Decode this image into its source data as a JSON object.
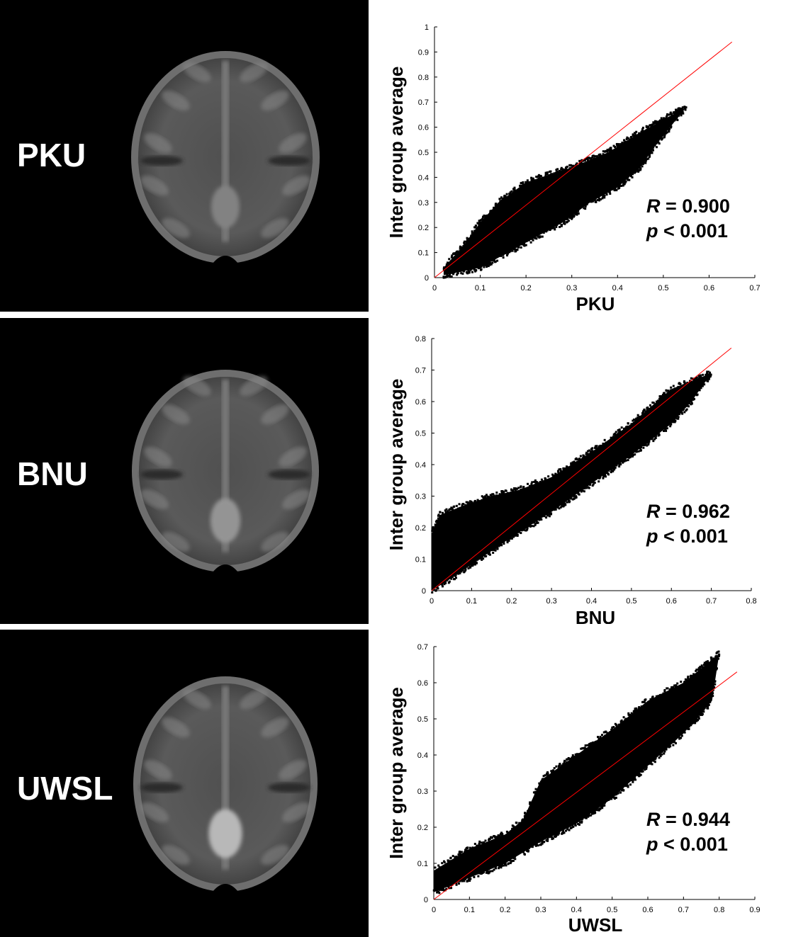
{
  "figure": {
    "rows": [
      {
        "site_label": "PKU"
      },
      {
        "site_label": "BNU"
      },
      {
        "site_label": "UWSL"
      }
    ]
  },
  "colors": {
    "points": "#000000",
    "fit_line": "#ff0000",
    "brain_background": "#000000",
    "label_text": "#ffffff"
  },
  "chart_data": [
    {
      "type": "scatter",
      "xlabel": "PKU",
      "ylabel": "Inter group average",
      "xlim": [
        0,
        0.7
      ],
      "ylim": [
        0,
        1
      ],
      "xticks": [
        "0",
        "0.1",
        "0.2",
        "0.3",
        "0.4",
        "0.5",
        "0.6",
        "0.7"
      ],
      "yticks": [
        "0",
        "0.1",
        "0.2",
        "0.3",
        "0.4",
        "0.5",
        "0.6",
        "0.7",
        "0.8",
        "0.9",
        "1"
      ],
      "fit_line": {
        "x": [
          0,
          0.65
        ],
        "y": [
          0,
          0.94
        ]
      },
      "cloud_upper": [
        [
          0.02,
          0.04
        ],
        [
          0.06,
          0.12
        ],
        [
          0.1,
          0.22
        ],
        [
          0.14,
          0.3
        ],
        [
          0.2,
          0.38
        ],
        [
          0.3,
          0.44
        ],
        [
          0.38,
          0.5
        ],
        [
          0.45,
          0.58
        ],
        [
          0.5,
          0.63
        ],
        [
          0.55,
          0.68
        ]
      ],
      "cloud_lower": [
        [
          0.02,
          0.01
        ],
        [
          0.1,
          0.04
        ],
        [
          0.16,
          0.1
        ],
        [
          0.22,
          0.16
        ],
        [
          0.28,
          0.22
        ],
        [
          0.34,
          0.3
        ],
        [
          0.4,
          0.36
        ],
        [
          0.45,
          0.44
        ],
        [
          0.48,
          0.52
        ],
        [
          0.55,
          0.68
        ]
      ],
      "annotation": {
        "r_symbol": "R",
        "r_value": "= 0.900",
        "p_symbol": "p",
        "p_value": "< 0.001"
      }
    },
    {
      "type": "scatter",
      "xlabel": "BNU",
      "ylabel": "Inter group average",
      "xlim": [
        0,
        0.8
      ],
      "ylim": [
        0,
        0.8
      ],
      "xticks": [
        "0",
        "0.1",
        "0.2",
        "0.3",
        "0.4",
        "0.5",
        "0.6",
        "0.7",
        "0.8"
      ],
      "yticks": [
        "0",
        "0.1",
        "0.2",
        "0.3",
        "0.4",
        "0.5",
        "0.6",
        "0.7",
        "0.8"
      ],
      "fit_line": {
        "x": [
          0,
          0.75
        ],
        "y": [
          0,
          0.77
        ]
      },
      "cloud_upper": [
        [
          0.0,
          0.18
        ],
        [
          0.02,
          0.24
        ],
        [
          0.08,
          0.27
        ],
        [
          0.15,
          0.3
        ],
        [
          0.22,
          0.32
        ],
        [
          0.3,
          0.36
        ],
        [
          0.4,
          0.44
        ],
        [
          0.5,
          0.53
        ],
        [
          0.6,
          0.64
        ],
        [
          0.7,
          0.69
        ]
      ],
      "cloud_lower": [
        [
          0.0,
          0.0
        ],
        [
          0.05,
          0.04
        ],
        [
          0.12,
          0.1
        ],
        [
          0.2,
          0.17
        ],
        [
          0.3,
          0.25
        ],
        [
          0.4,
          0.34
        ],
        [
          0.5,
          0.43
        ],
        [
          0.6,
          0.53
        ],
        [
          0.65,
          0.6
        ],
        [
          0.7,
          0.69
        ]
      ],
      "annotation": {
        "r_symbol": "R",
        "r_value": "= 0.962",
        "p_symbol": "p",
        "p_value": "< 0.001"
      }
    },
    {
      "type": "scatter",
      "xlabel": "UWSL",
      "ylabel": "Inter group average",
      "xlim": [
        0,
        0.9
      ],
      "ylim": [
        0,
        0.7
      ],
      "xticks": [
        "0",
        "0.1",
        "0.2",
        "0.3",
        "0.4",
        "0.5",
        "0.6",
        "0.7",
        "0.8",
        "0.9"
      ],
      "yticks": [
        "0",
        "0.1",
        "0.2",
        "0.3",
        "0.4",
        "0.5",
        "0.6",
        "0.7"
      ],
      "fit_line": {
        "x": [
          0,
          0.85
        ],
        "y": [
          0,
          0.63
        ]
      },
      "cloud_upper": [
        [
          0.0,
          0.08
        ],
        [
          0.1,
          0.14
        ],
        [
          0.2,
          0.18
        ],
        [
          0.25,
          0.22
        ],
        [
          0.3,
          0.33
        ],
        [
          0.4,
          0.4
        ],
        [
          0.5,
          0.47
        ],
        [
          0.6,
          0.55
        ],
        [
          0.7,
          0.6
        ],
        [
          0.8,
          0.68
        ]
      ],
      "cloud_lower": [
        [
          0.0,
          0.02
        ],
        [
          0.1,
          0.06
        ],
        [
          0.2,
          0.1
        ],
        [
          0.3,
          0.16
        ],
        [
          0.4,
          0.21
        ],
        [
          0.5,
          0.28
        ],
        [
          0.6,
          0.37
        ],
        [
          0.7,
          0.46
        ],
        [
          0.78,
          0.55
        ],
        [
          0.8,
          0.68
        ]
      ],
      "annotation": {
        "r_symbol": "R",
        "r_value": "= 0.944",
        "p_symbol": "p",
        "p_value": "< 0.001"
      }
    }
  ]
}
